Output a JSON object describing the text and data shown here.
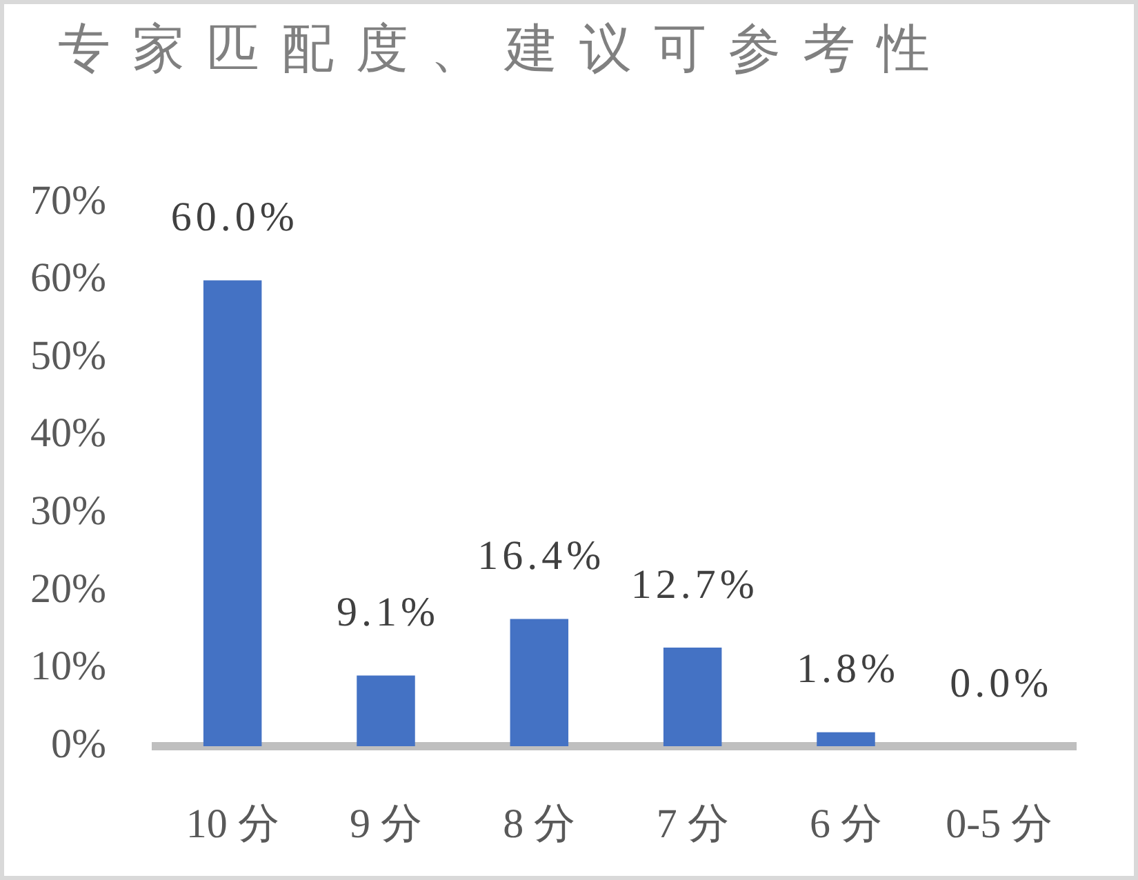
{
  "chart_data": {
    "type": "bar",
    "title": "专家匹配度、建议可参考性",
    "categories": [
      "10 分",
      "9 分",
      "8 分",
      "7 分",
      "6 分",
      "0-5 分"
    ],
    "values": [
      60.0,
      9.1,
      16.4,
      12.7,
      1.8,
      0.0
    ],
    "value_labels": [
      "60.0%",
      "9.1%",
      "16.4%",
      "12.7%",
      "1.8%",
      "0.0%"
    ],
    "color": "#4472c4",
    "ylim": [
      0,
      70
    ],
    "yticks": [
      {
        "value": 0,
        "label": "0%"
      },
      {
        "value": 10,
        "label": "10%"
      },
      {
        "value": 20,
        "label": "20%"
      },
      {
        "value": 30,
        "label": "30%"
      },
      {
        "value": 40,
        "label": "40%"
      },
      {
        "value": 50,
        "label": "50%"
      },
      {
        "value": 60,
        "label": "60%"
      },
      {
        "value": 70,
        "label": "70%"
      }
    ]
  }
}
